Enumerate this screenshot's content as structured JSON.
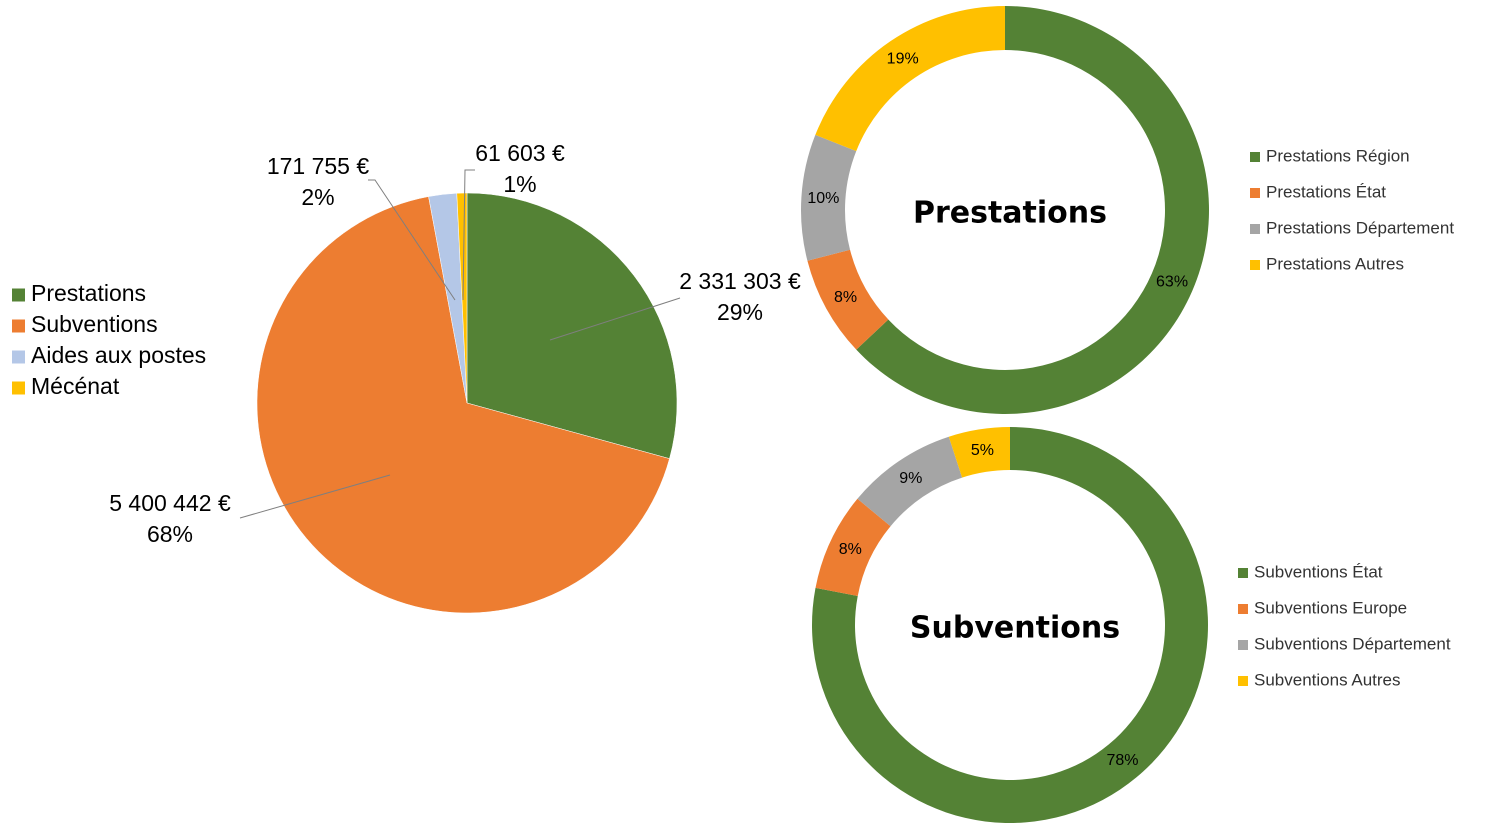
{
  "chart_data": [
    {
      "type": "pie",
      "categories": [
        "Prestations",
        "Subventions",
        "Aides aux postes",
        "Mécénat"
      ],
      "values": [
        2331303,
        5400442,
        171755,
        61603
      ],
      "value_labels": [
        "2 331 303 €",
        "5 400 442 €",
        "171 755 €",
        "61 603 €"
      ],
      "percent_labels": [
        "29%",
        "68%",
        "2%",
        "1%"
      ],
      "colors": [
        "#548235",
        "#ed7d31",
        "#b4c7e7",
        "#ffc000"
      ]
    },
    {
      "type": "doughnut",
      "title": "Prestations",
      "categories": [
        "Prestations Région",
        "Prestations État",
        "Prestations Département",
        "Prestations Autres"
      ],
      "values": [
        63,
        8,
        10,
        19
      ],
      "value_labels": [
        "63%",
        "8%",
        "10%",
        "19%"
      ],
      "colors": [
        "#548235",
        "#ed7d31",
        "#a5a5a5",
        "#ffc000"
      ]
    },
    {
      "type": "doughnut",
      "title": "Subventions",
      "categories": [
        "Subventions État",
        "Subventions Europe",
        "Subventions Département",
        "Subventions Autres"
      ],
      "values": [
        78,
        8,
        9,
        5
      ],
      "value_labels": [
        "78%",
        "8%",
        "9%",
        "5%"
      ],
      "colors": [
        "#548235",
        "#ed7d31",
        "#a5a5a5",
        "#ffc000"
      ]
    }
  ]
}
